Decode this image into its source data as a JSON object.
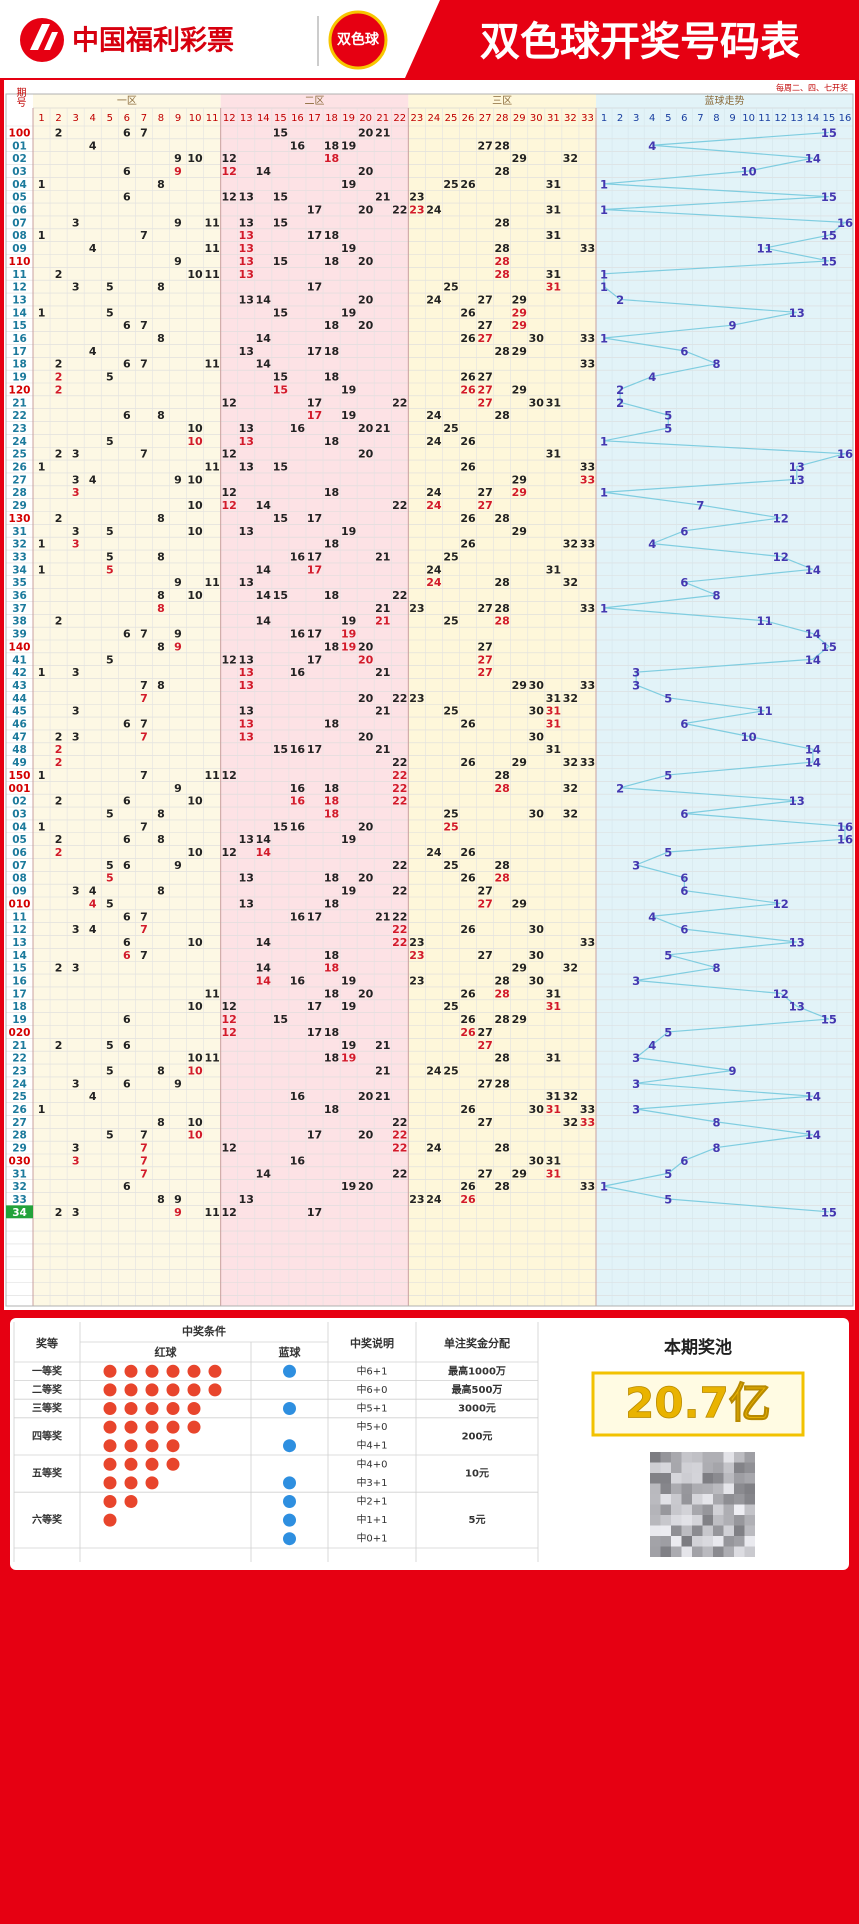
{
  "header": {
    "logo": "中国福利彩票",
    "badge": "双色球",
    "title": "双色球开奖号码表",
    "subtitle": "每周二、四、七开奖"
  },
  "table": {
    "period_header": "期号",
    "zones": [
      "一区",
      "二区",
      "三区",
      "蓝球走势"
    ],
    "red_numbers": [
      1,
      2,
      3,
      4,
      5,
      6,
      7,
      8,
      9,
      10,
      11,
      12,
      13,
      14,
      15,
      16,
      17,
      18,
      19,
      20,
      21,
      22,
      23,
      24,
      25,
      26,
      27,
      28,
      29,
      30,
      31,
      32,
      33
    ],
    "blue_numbers": [
      1,
      2,
      3,
      4,
      5,
      6,
      7,
      8,
      9,
      10,
      11,
      12,
      13,
      14,
      15,
      16
    ],
    "draws": [
      {
        "period": "100",
        "red": [
          2,
          6,
          7,
          15,
          20,
          21
        ],
        "blue": 15
      },
      {
        "period": "01",
        "red": [
          4,
          16,
          18,
          19,
          27,
          28
        ],
        "blue": 4
      },
      {
        "period": "02",
        "red": [
          9,
          10,
          12,
          18,
          29,
          32
        ],
        "blue": 14
      },
      {
        "period": "03",
        "red": [
          6,
          9,
          12,
          14,
          20,
          28
        ],
        "blue": 10
      },
      {
        "period": "04",
        "red": [
          1,
          8,
          19,
          25,
          26,
          31
        ],
        "blue": 1
      },
      {
        "period": "05",
        "red": [
          6,
          12,
          13,
          15,
          21,
          23
        ],
        "blue": 15
      },
      {
        "period": "06",
        "red": [
          17,
          20,
          22,
          23,
          24,
          31
        ],
        "blue": 1
      },
      {
        "period": "07",
        "red": [
          3,
          9,
          11,
          13,
          15,
          28
        ],
        "blue": 16
      },
      {
        "period": "08",
        "red": [
          1,
          7,
          13,
          17,
          18,
          31
        ],
        "blue": 15
      },
      {
        "period": "09",
        "red": [
          4,
          11,
          13,
          19,
          28,
          33
        ],
        "blue": 11
      },
      {
        "period": "110",
        "red": [
          9,
          13,
          15,
          18,
          20,
          28
        ],
        "blue": 15
      },
      {
        "period": "11",
        "red": [
          2,
          10,
          11,
          13,
          28,
          31
        ],
        "blue": 1
      },
      {
        "period": "12",
        "red": [
          3,
          5,
          8,
          17,
          25,
          31
        ],
        "blue": 1
      },
      {
        "period": "13",
        "red": [
          13,
          14,
          20,
          24,
          27,
          29
        ],
        "blue": 2
      },
      {
        "period": "14",
        "red": [
          1,
          5,
          15,
          19,
          26,
          29
        ],
        "blue": 13
      },
      {
        "period": "15",
        "red": [
          6,
          7,
          18,
          20,
          27,
          29
        ],
        "blue": 9
      },
      {
        "period": "16",
        "red": [
          8,
          14,
          26,
          27,
          30,
          33
        ],
        "blue": 1
      },
      {
        "period": "17",
        "red": [
          4,
          13,
          17,
          18,
          28,
          29
        ],
        "blue": 6
      },
      {
        "period": "18",
        "red": [
          2,
          6,
          7,
          11,
          14,
          33
        ],
        "blue": 8
      },
      {
        "period": "19",
        "red": [
          2,
          5,
          15,
          18,
          26,
          27
        ],
        "blue": 4
      },
      {
        "period": "120",
        "red": [
          2,
          15,
          19,
          26,
          27,
          29
        ],
        "blue": 2
      },
      {
        "period": "21",
        "red": [
          12,
          17,
          22,
          27,
          30,
          31
        ],
        "blue": 2
      },
      {
        "period": "22",
        "red": [
          6,
          8,
          17,
          19,
          24,
          28
        ],
        "blue": 5
      },
      {
        "period": "23",
        "red": [
          10,
          13,
          16,
          20,
          21,
          25
        ],
        "blue": 5
      },
      {
        "period": "24",
        "red": [
          5,
          10,
          13,
          18,
          24,
          26
        ],
        "blue": 1
      },
      {
        "period": "25",
        "red": [
          2,
          3,
          7,
          12,
          20,
          31
        ],
        "blue": 16
      },
      {
        "period": "26",
        "red": [
          1,
          11,
          13,
          15,
          26,
          33
        ],
        "blue": 13
      },
      {
        "period": "27",
        "red": [
          3,
          4,
          9,
          10,
          29,
          33
        ],
        "blue": 13
      },
      {
        "period": "28",
        "red": [
          3,
          12,
          18,
          24,
          27,
          29
        ],
        "blue": 1
      },
      {
        "period": "29",
        "red": [
          10,
          12,
          14,
          22,
          24,
          27
        ],
        "blue": 7
      },
      {
        "period": "130",
        "red": [
          2,
          8,
          15,
          17,
          26,
          28
        ],
        "blue": 12
      },
      {
        "period": "31",
        "red": [
          3,
          5,
          10,
          13,
          19,
          29
        ],
        "blue": 6
      },
      {
        "period": "32",
        "red": [
          1,
          3,
          18,
          26,
          32,
          33
        ],
        "blue": 4
      },
      {
        "period": "33",
        "red": [
          5,
          8,
          16,
          17,
          21,
          25
        ],
        "blue": 12
      },
      {
        "period": "34",
        "red": [
          1,
          5,
          14,
          17,
          24,
          31
        ],
        "blue": 14
      },
      {
        "period": "35",
        "red": [
          9,
          11,
          13,
          24,
          28,
          32
        ],
        "blue": 6
      },
      {
        "period": "36",
        "red": [
          8,
          10,
          14,
          15,
          18,
          22
        ],
        "blue": 8
      },
      {
        "period": "37",
        "red": [
          8,
          21,
          23,
          27,
          28,
          33
        ],
        "blue": 1
      },
      {
        "period": "38",
        "red": [
          2,
          14,
          19,
          21,
          25,
          28
        ],
        "blue": 11
      },
      {
        "period": "39",
        "red": [
          6,
          7,
          9,
          16,
          17,
          19
        ],
        "blue": 14
      },
      {
        "period": "140",
        "red": [
          8,
          9,
          18,
          19,
          20,
          27
        ],
        "blue": 15
      },
      {
        "period": "41",
        "red": [
          5,
          12,
          13,
          17,
          20,
          27
        ],
        "blue": 14
      },
      {
        "period": "42",
        "red": [
          1,
          3,
          13,
          16,
          21,
          27
        ],
        "blue": 3
      },
      {
        "period": "43",
        "red": [
          7,
          8,
          13,
          29,
          30,
          33
        ],
        "blue": 3
      },
      {
        "period": "44",
        "red": [
          7,
          20,
          22,
          23,
          31,
          32
        ],
        "blue": 5
      },
      {
        "period": "45",
        "red": [
          3,
          13,
          21,
          25,
          30,
          31
        ],
        "blue": 11
      },
      {
        "period": "46",
        "red": [
          6,
          7,
          13,
          18,
          26,
          31
        ],
        "blue": 6
      },
      {
        "period": "47",
        "red": [
          2,
          3,
          7,
          13,
          20,
          30
        ],
        "blue": 10
      },
      {
        "period": "48",
        "red": [
          2,
          15,
          16,
          17,
          21,
          31
        ],
        "blue": 14
      },
      {
        "period": "49",
        "red": [
          2,
          22,
          26,
          29,
          32,
          33
        ],
        "blue": 14
      },
      {
        "period": "150",
        "red": [
          1,
          7,
          11,
          12,
          22,
          28
        ],
        "blue": 5
      },
      {
        "period": "001",
        "red": [
          9,
          16,
          18,
          22,
          28,
          32
        ],
        "blue": 2
      },
      {
        "period": "02",
        "red": [
          2,
          6,
          10,
          16,
          18,
          22
        ],
        "blue": 13
      },
      {
        "period": "03",
        "red": [
          5,
          8,
          18,
          25,
          30,
          32
        ],
        "blue": 6
      },
      {
        "period": "04",
        "red": [
          1,
          7,
          15,
          16,
          20,
          25
        ],
        "blue": 16
      },
      {
        "period": "05",
        "red": [
          2,
          6,
          8,
          13,
          14,
          19
        ],
        "blue": 16
      },
      {
        "period": "06",
        "red": [
          2,
          10,
          12,
          14,
          24,
          26
        ],
        "blue": 5
      },
      {
        "period": "07",
        "red": [
          5,
          6,
          9,
          22,
          25,
          28
        ],
        "blue": 3
      },
      {
        "period": "08",
        "red": [
          5,
          13,
          18,
          20,
          26,
          28
        ],
        "blue": 6
      },
      {
        "period": "09",
        "red": [
          3,
          4,
          8,
          19,
          22,
          27
        ],
        "blue": 6
      },
      {
        "period": "010",
        "red": [
          4,
          5,
          13,
          18,
          27,
          29
        ],
        "blue": 12
      },
      {
        "period": "11",
        "red": [
          6,
          7,
          16,
          17,
          21,
          22
        ],
        "blue": 4
      },
      {
        "period": "12",
        "red": [
          3,
          4,
          7,
          22,
          26,
          30
        ],
        "blue": 6
      },
      {
        "period": "13",
        "red": [
          6,
          10,
          14,
          22,
          23,
          33
        ],
        "blue": 13
      },
      {
        "period": "14",
        "red": [
          6,
          7,
          18,
          23,
          27,
          30
        ],
        "blue": 5
      },
      {
        "period": "15",
        "red": [
          2,
          3,
          14,
          18,
          29,
          32
        ],
        "blue": 8
      },
      {
        "period": "16",
        "red": [
          14,
          16,
          19,
          23,
          28,
          30
        ],
        "blue": 3
      },
      {
        "period": "17",
        "red": [
          11,
          18,
          20,
          26,
          28,
          31
        ],
        "blue": 12
      },
      {
        "period": "18",
        "red": [
          10,
          12,
          17,
          19,
          25,
          31
        ],
        "blue": 13
      },
      {
        "period": "19",
        "red": [
          6,
          12,
          15,
          26,
          28,
          29
        ],
        "blue": 15
      },
      {
        "period": "020",
        "red": [
          12,
          17,
          18,
          26,
          27
        ],
        "blue": 5
      },
      {
        "period": "21",
        "red": [
          2,
          5,
          6,
          19,
          21,
          27
        ],
        "blue": 4
      },
      {
        "period": "22",
        "red": [
          10,
          11,
          18,
          19,
          28,
          31
        ],
        "blue": 3
      },
      {
        "period": "23",
        "red": [
          5,
          8,
          10,
          21,
          24,
          25
        ],
        "blue": 9
      },
      {
        "period": "24",
        "red": [
          3,
          6,
          9,
          27,
          28
        ],
        "blue": 3
      },
      {
        "period": "25",
        "red": [
          4,
          16,
          20,
          21,
          31,
          32
        ],
        "blue": 14
      },
      {
        "period": "26",
        "red": [
          1,
          18,
          26,
          30,
          31,
          33
        ],
        "blue": 3
      },
      {
        "period": "27",
        "red": [
          8,
          10,
          22,
          27,
          32,
          33
        ],
        "blue": 8
      },
      {
        "period": "28",
        "red": [
          5,
          7,
          10,
          17,
          20,
          22
        ],
        "blue": 14
      },
      {
        "period": "29",
        "red": [
          3,
          7,
          12,
          22,
          24,
          28
        ],
        "blue": 8
      },
      {
        "period": "030",
        "red": [
          3,
          7,
          16,
          30,
          31
        ],
        "blue": 6
      },
      {
        "period": "31",
        "red": [
          7,
          14,
          22,
          27,
          29,
          31
        ],
        "blue": 5
      },
      {
        "period": "32",
        "red": [
          6,
          19,
          20,
          26,
          28,
          33
        ],
        "blue": 1
      },
      {
        "period": "33",
        "red": [
          8,
          9,
          13,
          23,
          24,
          26
        ],
        "blue": 5
      },
      {
        "period": "34",
        "red": [
          2,
          3,
          9,
          11,
          12,
          17
        ],
        "blue": 15
      }
    ]
  },
  "prize_table": {
    "headers": {
      "level": "奖等",
      "condition": "中奖条件",
      "red": "红球",
      "blue": "蓝球",
      "desc": "中奖说明",
      "amount": "单注奖金分配"
    },
    "levels": [
      {
        "name": "一等奖",
        "amount": "最高1000万",
        "rules": [
          {
            "red": 6,
            "blue": 1,
            "desc": "中6+1"
          }
        ]
      },
      {
        "name": "二等奖",
        "amount": "最高500万",
        "rules": [
          {
            "red": 6,
            "blue": 0,
            "desc": "中6+0"
          }
        ]
      },
      {
        "name": "三等奖",
        "amount": "3000元",
        "rules": [
          {
            "red": 5,
            "blue": 1,
            "desc": "中5+1"
          }
        ]
      },
      {
        "name": "四等奖",
        "amount": "200元",
        "rules": [
          {
            "red": 5,
            "blue": 0,
            "desc": "中5+0"
          },
          {
            "red": 4,
            "blue": 1,
            "desc": "中4+1"
          }
        ]
      },
      {
        "name": "五等奖",
        "amount": "10元",
        "rules": [
          {
            "red": 4,
            "blue": 0,
            "desc": "中4+0"
          },
          {
            "red": 3,
            "blue": 1,
            "desc": "中3+1"
          }
        ]
      },
      {
        "name": "六等奖",
        "amount": "5元",
        "rules": [
          {
            "red": 2,
            "blue": 1,
            "desc": "中2+1"
          },
          {
            "red": 1,
            "blue": 1,
            "desc": "中1+1"
          },
          {
            "red": 0,
            "blue": 1,
            "desc": "中0+1"
          }
        ]
      }
    ]
  },
  "pool": {
    "label": "本期奖池",
    "amount": "20.7亿"
  }
}
